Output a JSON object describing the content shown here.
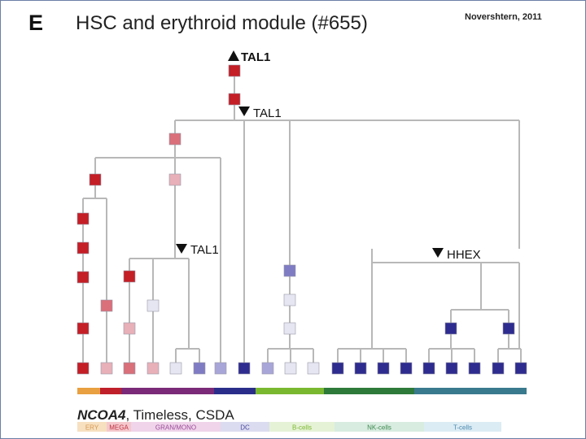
{
  "panel_letter": "E",
  "title": "HSC and erythroid module (#655)",
  "citation": "Novershtern, 2011",
  "regulator_labels": {
    "root": "TAL1",
    "split_top": "TAL1",
    "split_gran": "TAL1",
    "split_lymph": "HHEX"
  },
  "caption": {
    "gene": "NCOA4",
    "rest": ", Timeless, CSDA"
  },
  "lineages": [
    {
      "label": "ERY",
      "color": "#e8a040"
    },
    {
      "label": "MEGA",
      "color": "#c0202a"
    },
    {
      "label": "GRAN/MONO",
      "color": "#7a2a78"
    },
    {
      "label": "DC",
      "color": "#2a2e8a"
    },
    {
      "label": "B-cells",
      "color": "#7ab830"
    },
    {
      "label": "NK-cells",
      "color": "#2e7a3a"
    },
    {
      "label": "T-cells",
      "color": "#3a7a8e"
    }
  ],
  "colors": {
    "red": "#c41e26",
    "pink": "#d9707a",
    "light_pink": "#e8b0b8",
    "pale": "#e6e6f2",
    "light_purple": "#a8a6d8",
    "mid_purple": "#7f7cc4",
    "dark_blue": "#2e2c8e",
    "edge": "#b8b8b8"
  }
}
